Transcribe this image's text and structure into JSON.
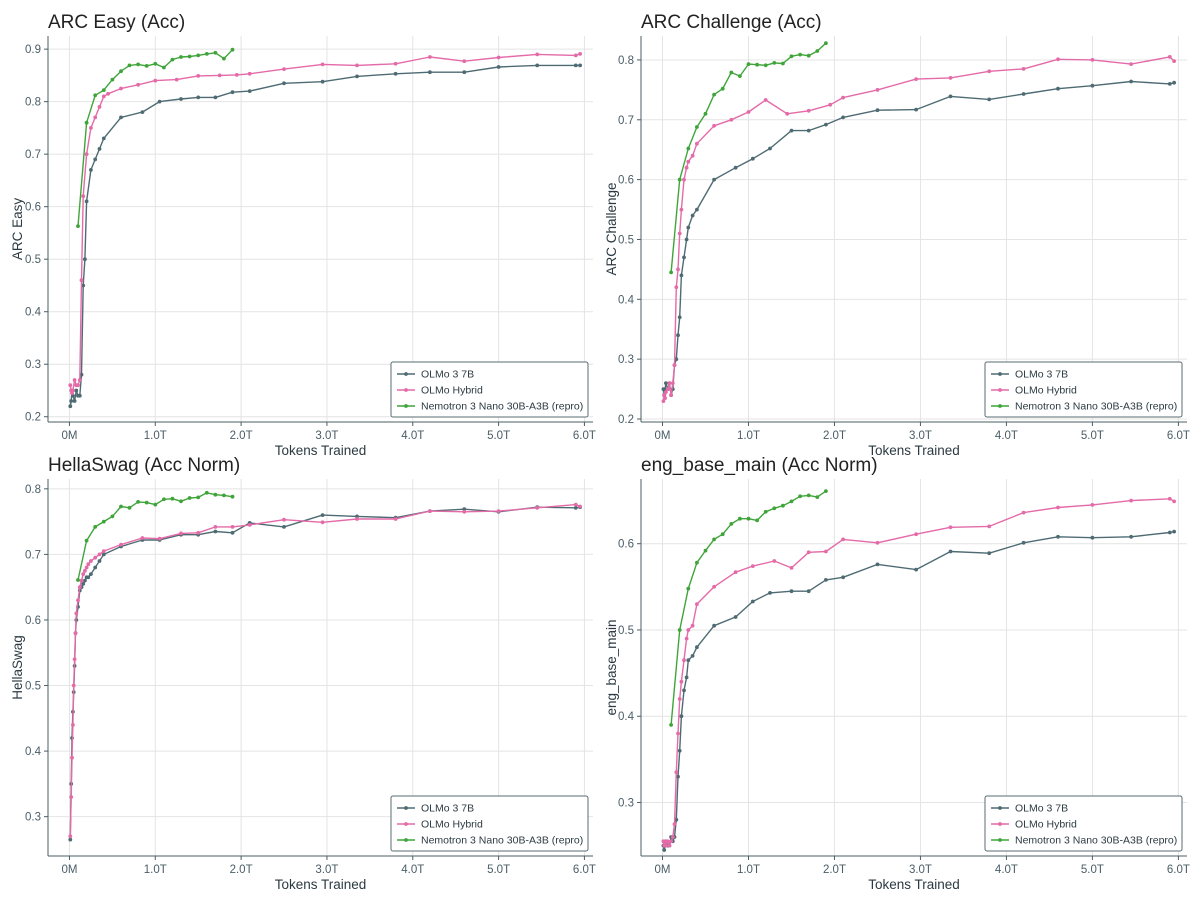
{
  "colors": {
    "OLMo 3 7B": "#4e6b73",
    "OLMo Hybrid": "#e46aa8",
    "Nemotron 3 Nano 30B-A3B (repro)": "#3fa53a"
  },
  "chart_data": [
    {
      "type": "line",
      "title": "ARC Easy (Acc)",
      "xlabel": "Tokens Trained",
      "ylabel": "ARC Easy",
      "xlim": [
        -0.25,
        6.1
      ],
      "ylim": [
        0.19,
        0.925
      ],
      "xticks": [
        0,
        1,
        2,
        3,
        4,
        5,
        6
      ],
      "xtick_labels": [
        "0M",
        "1.0T",
        "2.0T",
        "3.0T",
        "4.0T",
        "5.0T",
        "6.0T"
      ],
      "yticks": [
        0.2,
        0.3,
        0.4,
        0.5,
        0.6,
        0.7,
        0.8,
        0.9
      ],
      "ytick_labels": [
        "0.2",
        "0.3",
        "0.4",
        "0.5",
        "0.6",
        "0.7",
        "0.8",
        "0.9"
      ],
      "legend_position": "bottom-right",
      "series": [
        {
          "name": "OLMo 3 7B",
          "x": [
            0.01,
            0.02,
            0.03,
            0.04,
            0.06,
            0.08,
            0.1,
            0.12,
            0.14,
            0.16,
            0.18,
            0.2,
            0.25,
            0.3,
            0.35,
            0.4,
            0.6,
            0.85,
            1.05,
            1.3,
            1.5,
            1.7,
            1.9,
            2.1,
            2.5,
            2.95,
            3.35,
            3.8,
            4.2,
            4.6,
            5.0,
            5.45,
            5.9,
            5.95
          ],
          "y": [
            0.22,
            0.23,
            0.25,
            0.24,
            0.23,
            0.25,
            0.24,
            0.24,
            0.28,
            0.45,
            0.5,
            0.61,
            0.67,
            0.69,
            0.71,
            0.73,
            0.77,
            0.78,
            0.8,
            0.805,
            0.808,
            0.808,
            0.818,
            0.82,
            0.835,
            0.838,
            0.848,
            0.853,
            0.856,
            0.856,
            0.866,
            0.869,
            0.869,
            0.869
          ]
        },
        {
          "name": "OLMo Hybrid",
          "x": [
            0.01,
            0.02,
            0.03,
            0.04,
            0.06,
            0.08,
            0.1,
            0.12,
            0.14,
            0.16,
            0.2,
            0.25,
            0.3,
            0.35,
            0.4,
            0.45,
            0.6,
            0.8,
            1.0,
            1.25,
            1.5,
            1.75,
            1.95,
            2.1,
            2.5,
            2.95,
            3.35,
            3.8,
            4.2,
            4.6,
            5.0,
            5.45,
            5.9,
            5.95
          ],
          "y": [
            0.26,
            0.25,
            0.245,
            0.25,
            0.27,
            0.26,
            0.26,
            0.27,
            0.46,
            0.62,
            0.7,
            0.75,
            0.77,
            0.79,
            0.81,
            0.815,
            0.825,
            0.832,
            0.84,
            0.842,
            0.849,
            0.85,
            0.851,
            0.853,
            0.862,
            0.871,
            0.869,
            0.872,
            0.885,
            0.877,
            0.884,
            0.89,
            0.888,
            0.891
          ]
        },
        {
          "name": "Nemotron 3 Nano 30B-A3B (repro)",
          "x": [
            0.1,
            0.2,
            0.3,
            0.4,
            0.5,
            0.6,
            0.7,
            0.8,
            0.9,
            1.0,
            1.1,
            1.2,
            1.3,
            1.4,
            1.5,
            1.6,
            1.7,
            1.8,
            1.9
          ],
          "y": [
            0.563,
            0.76,
            0.812,
            0.822,
            0.842,
            0.858,
            0.869,
            0.871,
            0.868,
            0.872,
            0.865,
            0.88,
            0.885,
            0.886,
            0.888,
            0.891,
            0.893,
            0.882,
            0.899
          ]
        }
      ]
    },
    {
      "type": "line",
      "title": "ARC Challenge (Acc)",
      "xlabel": "Tokens Trained",
      "ylabel": "ARC Challenge",
      "xlim": [
        -0.25,
        6.1
      ],
      "ylim": [
        0.195,
        0.84
      ],
      "xticks": [
        0,
        1,
        2,
        3,
        4,
        5,
        6
      ],
      "xtick_labels": [
        "0M",
        "1.0T",
        "2.0T",
        "3.0T",
        "4.0T",
        "5.0T",
        "6.0T"
      ],
      "yticks": [
        0.2,
        0.3,
        0.4,
        0.5,
        0.6,
        0.7,
        0.8
      ],
      "ytick_labels": [
        "0.2",
        "0.3",
        "0.4",
        "0.5",
        "0.6",
        "0.7",
        "0.8"
      ],
      "legend_position": "bottom-right",
      "series": [
        {
          "name": "OLMo 3 7B",
          "x": [
            0.01,
            0.02,
            0.03,
            0.04,
            0.06,
            0.08,
            0.1,
            0.12,
            0.14,
            0.16,
            0.18,
            0.2,
            0.22,
            0.25,
            0.28,
            0.3,
            0.35,
            0.4,
            0.6,
            0.85,
            1.05,
            1.25,
            1.5,
            1.7,
            1.9,
            2.1,
            2.5,
            2.95,
            3.35,
            3.8,
            4.2,
            4.6,
            5.0,
            5.45,
            5.9,
            5.95
          ],
          "y": [
            0.25,
            0.24,
            0.25,
            0.26,
            0.25,
            0.26,
            0.24,
            0.25,
            0.29,
            0.3,
            0.34,
            0.37,
            0.44,
            0.47,
            0.5,
            0.52,
            0.54,
            0.55,
            0.6,
            0.62,
            0.635,
            0.652,
            0.682,
            0.682,
            0.692,
            0.704,
            0.716,
            0.717,
            0.739,
            0.734,
            0.743,
            0.752,
            0.757,
            0.764,
            0.76,
            0.762
          ]
        },
        {
          "name": "OLMo Hybrid",
          "x": [
            0.01,
            0.02,
            0.03,
            0.04,
            0.06,
            0.08,
            0.1,
            0.12,
            0.14,
            0.16,
            0.18,
            0.2,
            0.22,
            0.25,
            0.28,
            0.3,
            0.35,
            0.4,
            0.6,
            0.8,
            1.0,
            1.2,
            1.45,
            1.7,
            1.95,
            2.1,
            2.5,
            2.95,
            3.35,
            3.8,
            4.2,
            4.6,
            5.0,
            5.45,
            5.9,
            5.95
          ],
          "y": [
            0.23,
            0.24,
            0.235,
            0.245,
            0.25,
            0.26,
            0.24,
            0.26,
            0.29,
            0.42,
            0.45,
            0.51,
            0.55,
            0.6,
            0.62,
            0.63,
            0.64,
            0.66,
            0.69,
            0.7,
            0.713,
            0.733,
            0.71,
            0.715,
            0.725,
            0.737,
            0.75,
            0.768,
            0.77,
            0.781,
            0.785,
            0.801,
            0.8,
            0.793,
            0.805,
            0.798
          ]
        },
        {
          "name": "Nemotron 3 Nano 30B-A3B (repro)",
          "x": [
            0.1,
            0.2,
            0.3,
            0.4,
            0.5,
            0.6,
            0.7,
            0.8,
            0.9,
            1.0,
            1.1,
            1.2,
            1.3,
            1.4,
            1.5,
            1.6,
            1.7,
            1.8,
            1.9
          ],
          "y": [
            0.445,
            0.6,
            0.652,
            0.688,
            0.71,
            0.742,
            0.752,
            0.779,
            0.773,
            0.793,
            0.792,
            0.791,
            0.795,
            0.794,
            0.806,
            0.809,
            0.807,
            0.815,
            0.828
          ]
        }
      ]
    },
    {
      "type": "line",
      "title": "HellaSwag (Acc Norm)",
      "xlabel": "Tokens Trained",
      "ylabel": "HellaSwag",
      "xlim": [
        -0.25,
        6.1
      ],
      "ylim": [
        0.24,
        0.815
      ],
      "xticks": [
        0,
        1,
        2,
        3,
        4,
        5,
        6
      ],
      "xtick_labels": [
        "0M",
        "1.0T",
        "2.0T",
        "3.0T",
        "4.0T",
        "5.0T",
        "6.0T"
      ],
      "yticks": [
        0.3,
        0.4,
        0.5,
        0.6,
        0.7,
        0.8
      ],
      "ytick_labels": [
        "0.3",
        "0.4",
        "0.5",
        "0.6",
        "0.7",
        "0.8"
      ],
      "legend_position": "bottom-right",
      "series": [
        {
          "name": "OLMo 3 7B",
          "x": [
            0.01,
            0.02,
            0.03,
            0.04,
            0.05,
            0.06,
            0.07,
            0.08,
            0.1,
            0.12,
            0.14,
            0.16,
            0.18,
            0.2,
            0.22,
            0.25,
            0.3,
            0.35,
            0.4,
            0.6,
            0.85,
            1.05,
            1.3,
            1.5,
            1.7,
            1.9,
            2.1,
            2.5,
            2.95,
            3.35,
            3.8,
            4.2,
            4.6,
            5.0,
            5.45,
            5.9,
            5.95
          ],
          "y": [
            0.265,
            0.35,
            0.42,
            0.46,
            0.49,
            0.53,
            0.58,
            0.6,
            0.62,
            0.645,
            0.65,
            0.655,
            0.66,
            0.665,
            0.665,
            0.67,
            0.68,
            0.69,
            0.7,
            0.712,
            0.722,
            0.722,
            0.73,
            0.73,
            0.735,
            0.733,
            0.748,
            0.742,
            0.76,
            0.758,
            0.756,
            0.766,
            0.769,
            0.765,
            0.772,
            0.771,
            0.772
          ]
        },
        {
          "name": "OLMo Hybrid",
          "x": [
            0.01,
            0.02,
            0.03,
            0.04,
            0.05,
            0.06,
            0.07,
            0.08,
            0.1,
            0.12,
            0.14,
            0.16,
            0.18,
            0.2,
            0.22,
            0.25,
            0.3,
            0.35,
            0.4,
            0.6,
            0.85,
            1.05,
            1.3,
            1.5,
            1.7,
            1.9,
            2.1,
            2.5,
            2.95,
            3.35,
            3.8,
            4.2,
            4.6,
            5.0,
            5.45,
            5.9,
            5.95
          ],
          "y": [
            0.27,
            0.33,
            0.39,
            0.44,
            0.5,
            0.54,
            0.58,
            0.61,
            0.63,
            0.65,
            0.66,
            0.67,
            0.675,
            0.68,
            0.685,
            0.69,
            0.695,
            0.7,
            0.705,
            0.715,
            0.725,
            0.724,
            0.732,
            0.733,
            0.742,
            0.742,
            0.745,
            0.753,
            0.749,
            0.754,
            0.754,
            0.766,
            0.765,
            0.766,
            0.771,
            0.776,
            0.773
          ]
        },
        {
          "name": "Nemotron 3 Nano 30B-A3B (repro)",
          "x": [
            0.1,
            0.2,
            0.3,
            0.4,
            0.5,
            0.6,
            0.7,
            0.8,
            0.9,
            1.0,
            1.1,
            1.2,
            1.3,
            1.4,
            1.5,
            1.6,
            1.7,
            1.8,
            1.9
          ],
          "y": [
            0.661,
            0.721,
            0.742,
            0.75,
            0.758,
            0.773,
            0.771,
            0.78,
            0.779,
            0.776,
            0.784,
            0.785,
            0.781,
            0.786,
            0.787,
            0.794,
            0.791,
            0.79,
            0.788
          ]
        }
      ]
    },
    {
      "type": "line",
      "title": "eng_base_main (Acc Norm)",
      "xlabel": "Tokens Trained",
      "ylabel": "eng_base_main",
      "xlim": [
        -0.25,
        6.1
      ],
      "ylim": [
        0.238,
        0.675
      ],
      "xticks": [
        0,
        1,
        2,
        3,
        4,
        5,
        6
      ],
      "xtick_labels": [
        "0M",
        "1.0T",
        "2.0T",
        "3.0T",
        "4.0T",
        "5.0T",
        "6.0T"
      ],
      "yticks": [
        0.3,
        0.4,
        0.5,
        0.6
      ],
      "ytick_labels": [
        "0.3",
        "0.4",
        "0.5",
        "0.6"
      ],
      "legend_position": "bottom-right",
      "series": [
        {
          "name": "OLMo 3 7B",
          "x": [
            0.01,
            0.02,
            0.03,
            0.04,
            0.06,
            0.08,
            0.1,
            0.12,
            0.14,
            0.16,
            0.18,
            0.2,
            0.22,
            0.25,
            0.28,
            0.3,
            0.35,
            0.4,
            0.6,
            0.85,
            1.05,
            1.25,
            1.5,
            1.7,
            1.9,
            2.1,
            2.5,
            2.95,
            3.35,
            3.8,
            4.2,
            4.6,
            5.0,
            5.45,
            5.9,
            5.95
          ],
          "y": [
            0.25,
            0.245,
            0.25,
            0.255,
            0.25,
            0.25,
            0.26,
            0.255,
            0.26,
            0.28,
            0.33,
            0.36,
            0.4,
            0.43,
            0.445,
            0.465,
            0.47,
            0.48,
            0.505,
            0.515,
            0.533,
            0.543,
            0.545,
            0.545,
            0.558,
            0.561,
            0.576,
            0.57,
            0.591,
            0.589,
            0.601,
            0.608,
            0.607,
            0.608,
            0.613,
            0.614
          ]
        },
        {
          "name": "OLMo Hybrid",
          "x": [
            0.01,
            0.02,
            0.03,
            0.04,
            0.06,
            0.08,
            0.1,
            0.12,
            0.14,
            0.16,
            0.18,
            0.2,
            0.22,
            0.25,
            0.28,
            0.3,
            0.35,
            0.4,
            0.6,
            0.85,
            1.05,
            1.3,
            1.5,
            1.7,
            1.9,
            2.1,
            2.5,
            2.95,
            3.35,
            3.8,
            4.2,
            4.6,
            5.0,
            5.45,
            5.9,
            5.95
          ],
          "y": [
            0.255,
            0.25,
            0.255,
            0.25,
            0.255,
            0.25,
            0.255,
            0.26,
            0.275,
            0.335,
            0.38,
            0.42,
            0.44,
            0.465,
            0.49,
            0.5,
            0.505,
            0.53,
            0.55,
            0.567,
            0.574,
            0.58,
            0.572,
            0.59,
            0.591,
            0.605,
            0.601,
            0.611,
            0.619,
            0.62,
            0.636,
            0.642,
            0.645,
            0.65,
            0.652,
            0.649
          ]
        },
        {
          "name": "Nemotron 3 Nano 30B-A3B (repro)",
          "x": [
            0.1,
            0.2,
            0.3,
            0.4,
            0.5,
            0.6,
            0.7,
            0.8,
            0.9,
            1.0,
            1.1,
            1.2,
            1.3,
            1.4,
            1.5,
            1.6,
            1.7,
            1.8,
            1.9
          ],
          "y": [
            0.39,
            0.5,
            0.548,
            0.578,
            0.592,
            0.605,
            0.611,
            0.623,
            0.629,
            0.629,
            0.627,
            0.637,
            0.641,
            0.644,
            0.649,
            0.655,
            0.656,
            0.654,
            0.661
          ]
        }
      ]
    }
  ]
}
